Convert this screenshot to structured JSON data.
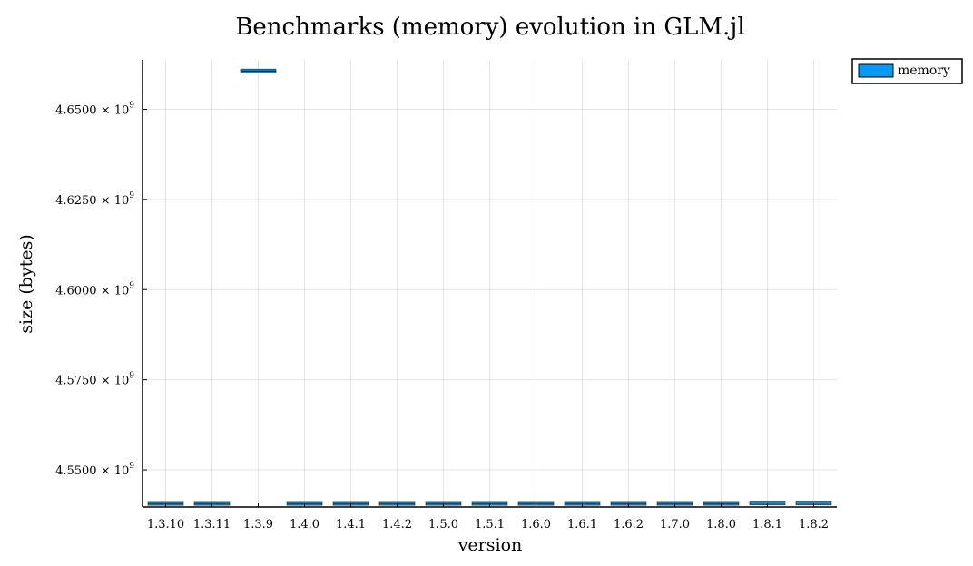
{
  "chart_data": {
    "type": "box",
    "title": "Benchmarks (memory) evolution in GLM.jl",
    "xlabel": "version",
    "ylabel": "size (bytes)",
    "categories": [
      "1.3.10",
      "1.3.11",
      "1.3.9",
      "1.4.0",
      "1.4.1",
      "1.4.2",
      "1.5.0",
      "1.5.1",
      "1.6.0",
      "1.6.1",
      "1.6.2",
      "1.7.0",
      "1.8.0",
      "1.8.1",
      "1.8.2"
    ],
    "series": [
      {
        "name": "memory",
        "color": "#009af9",
        "values": [
          4540700000,
          4540700000,
          4660600000,
          4540700000,
          4540700000,
          4540700000,
          4540700000,
          4540700000,
          4540700000,
          4540700000,
          4540700000,
          4540700000,
          4540700000,
          4540800000,
          4540800000
        ]
      }
    ],
    "ylim": [
      4539700000,
      4663700000
    ],
    "yticks": [
      {
        "mantissa": "4.5500",
        "times": "×",
        "base": "10",
        "exponent": "9",
        "value": 4550000000
      },
      {
        "mantissa": "4.5750",
        "times": "×",
        "base": "10",
        "exponent": "9",
        "value": 4575000000
      },
      {
        "mantissa": "4.6000",
        "times": "×",
        "base": "10",
        "exponent": "9",
        "value": 4600000000
      },
      {
        "mantissa": "4.6250",
        "times": "×",
        "base": "10",
        "exponent": "9",
        "value": 4625000000
      },
      {
        "mantissa": "4.6500",
        "times": "×",
        "base": "10",
        "exponent": "9",
        "value": 4650000000
      }
    ],
    "grid": true,
    "legend_position": "outer-top-right"
  }
}
